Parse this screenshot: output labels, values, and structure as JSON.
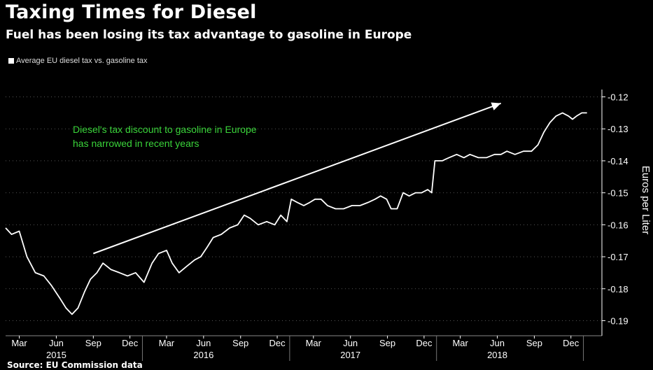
{
  "header": {
    "title": "Taxing Times for Diesel",
    "subtitle": "Fuel has been losing its tax advantage to gasoline in Europe"
  },
  "footer": {
    "source": "Source: EU Commission data"
  },
  "colors": {
    "background": "#000000",
    "line": "#ffffff",
    "annotation": "#3ad43a",
    "grid": "#555555"
  },
  "chart_data": {
    "type": "line",
    "title": "Taxing Times for Diesel",
    "subtitle": "Fuel has been losing its tax advantage to gasoline in Europe",
    "ylabel": "Euros per Liter",
    "ylim": [
      -0.19,
      -0.12
    ],
    "yticks": [
      -0.12,
      -0.13,
      -0.14,
      -0.15,
      -0.16,
      -0.17,
      -0.18,
      -0.19
    ],
    "ytick_labels": [
      "-0.12",
      "-0.13",
      "-0.14",
      "-0.15",
      "-0.16",
      "-0.17",
      "-0.18",
      "-0.19"
    ],
    "xlim": [
      "2015-01-26",
      "2019-02-16"
    ],
    "x_ticks": [
      {
        "date": "2015-03-01",
        "label": "Mar"
      },
      {
        "date": "2015-06-01",
        "label": "Jun"
      },
      {
        "date": "2015-09-01",
        "label": "Sep"
      },
      {
        "date": "2015-12-01",
        "label": "Dec"
      },
      {
        "date": "2016-03-01",
        "label": "Mar"
      },
      {
        "date": "2016-06-01",
        "label": "Jun"
      },
      {
        "date": "2016-09-01",
        "label": "Sep"
      },
      {
        "date": "2016-12-01",
        "label": "Dec"
      },
      {
        "date": "2017-03-01",
        "label": "Mar"
      },
      {
        "date": "2017-06-01",
        "label": "Jun"
      },
      {
        "date": "2017-09-01",
        "label": "Sep"
      },
      {
        "date": "2017-12-01",
        "label": "Dec"
      },
      {
        "date": "2018-03-01",
        "label": "Mar"
      },
      {
        "date": "2018-06-01",
        "label": "Jun"
      },
      {
        "date": "2018-09-01",
        "label": "Sep"
      },
      {
        "date": "2018-12-01",
        "label": "Dec"
      }
    ],
    "year_labels": [
      {
        "date": "2015-06-01",
        "label": "2015"
      },
      {
        "date": "2016-06-01",
        "label": "2016"
      },
      {
        "date": "2017-06-01",
        "label": "2017"
      },
      {
        "date": "2018-06-01",
        "label": "2018"
      }
    ],
    "series": [
      {
        "name": "Average EU diesel tax vs. gasoline tax",
        "points": [
          [
            "2015-01-26",
            -0.161
          ],
          [
            "2015-02-10",
            -0.163
          ],
          [
            "2015-03-01",
            -0.162
          ],
          [
            "2015-03-20",
            -0.17
          ],
          [
            "2015-04-10",
            -0.175
          ],
          [
            "2015-05-01",
            -0.176
          ],
          [
            "2015-05-20",
            -0.179
          ],
          [
            "2015-06-10",
            -0.183
          ],
          [
            "2015-06-25",
            -0.186
          ],
          [
            "2015-07-10",
            -0.188
          ],
          [
            "2015-07-25",
            -0.186
          ],
          [
            "2015-08-10",
            -0.181
          ],
          [
            "2015-08-25",
            -0.177
          ],
          [
            "2015-09-10",
            -0.175
          ],
          [
            "2015-09-25",
            -0.172
          ],
          [
            "2015-10-15",
            -0.174
          ],
          [
            "2015-11-05",
            -0.175
          ],
          [
            "2015-11-25",
            -0.176
          ],
          [
            "2015-12-15",
            -0.175
          ],
          [
            "2016-01-05",
            -0.178
          ],
          [
            "2016-01-25",
            -0.172
          ],
          [
            "2016-02-10",
            -0.169
          ],
          [
            "2016-03-01",
            -0.168
          ],
          [
            "2016-03-15",
            -0.172
          ],
          [
            "2016-04-01",
            -0.175
          ],
          [
            "2016-04-20",
            -0.173
          ],
          [
            "2016-05-10",
            -0.171
          ],
          [
            "2016-05-25",
            -0.17
          ],
          [
            "2016-06-10",
            -0.167
          ],
          [
            "2016-06-25",
            -0.164
          ],
          [
            "2016-07-15",
            -0.163
          ],
          [
            "2016-08-05",
            -0.161
          ],
          [
            "2016-08-25",
            -0.16
          ],
          [
            "2016-09-10",
            -0.157
          ],
          [
            "2016-09-25",
            -0.158
          ],
          [
            "2016-10-15",
            -0.16
          ],
          [
            "2016-11-05",
            -0.159
          ],
          [
            "2016-11-25",
            -0.16
          ],
          [
            "2016-12-10",
            -0.157
          ],
          [
            "2016-12-25",
            -0.159
          ],
          [
            "2017-01-05",
            -0.152
          ],
          [
            "2017-01-20",
            -0.153
          ],
          [
            "2017-02-05",
            -0.154
          ],
          [
            "2017-02-20",
            -0.153
          ],
          [
            "2017-03-05",
            -0.152
          ],
          [
            "2017-03-20",
            -0.152
          ],
          [
            "2017-04-05",
            -0.154
          ],
          [
            "2017-04-25",
            -0.155
          ],
          [
            "2017-05-15",
            -0.155
          ],
          [
            "2017-06-05",
            -0.154
          ],
          [
            "2017-06-25",
            -0.154
          ],
          [
            "2017-07-15",
            -0.153
          ],
          [
            "2017-08-01",
            -0.152
          ],
          [
            "2017-08-15",
            -0.151
          ],
          [
            "2017-08-30",
            -0.152
          ],
          [
            "2017-09-10",
            -0.155
          ],
          [
            "2017-09-25",
            -0.155
          ],
          [
            "2017-10-10",
            -0.15
          ],
          [
            "2017-10-25",
            -0.151
          ],
          [
            "2017-11-10",
            -0.15
          ],
          [
            "2017-11-25",
            -0.15
          ],
          [
            "2017-12-10",
            -0.149
          ],
          [
            "2017-12-20",
            -0.15
          ],
          [
            "2017-12-28",
            -0.14
          ],
          [
            "2018-01-15",
            -0.14
          ],
          [
            "2018-02-01",
            -0.139
          ],
          [
            "2018-02-20",
            -0.138
          ],
          [
            "2018-03-10",
            -0.139
          ],
          [
            "2018-03-25",
            -0.138
          ],
          [
            "2018-04-15",
            -0.139
          ],
          [
            "2018-05-05",
            -0.139
          ],
          [
            "2018-05-25",
            -0.138
          ],
          [
            "2018-06-10",
            -0.138
          ],
          [
            "2018-06-25",
            -0.137
          ],
          [
            "2018-07-15",
            -0.138
          ],
          [
            "2018-08-05",
            -0.137
          ],
          [
            "2018-08-25",
            -0.137
          ],
          [
            "2018-09-10",
            -0.135
          ],
          [
            "2018-09-25",
            -0.131
          ],
          [
            "2018-10-10",
            -0.128
          ],
          [
            "2018-10-25",
            -0.126
          ],
          [
            "2018-11-10",
            -0.125
          ],
          [
            "2018-11-25",
            -0.126
          ],
          [
            "2018-12-05",
            -0.127
          ],
          [
            "2018-12-15",
            -0.126
          ],
          [
            "2018-12-28",
            -0.125
          ],
          [
            "2019-01-10",
            -0.125
          ]
        ]
      }
    ],
    "annotation": {
      "lines": [
        "Diesel's tax discount to gasoline in Europe",
        "has narrowed in recent years"
      ],
      "arrow_from": [
        "2015-09-01",
        -0.169
      ],
      "arrow_to": [
        "2018-06-10",
        -0.122
      ]
    }
  }
}
